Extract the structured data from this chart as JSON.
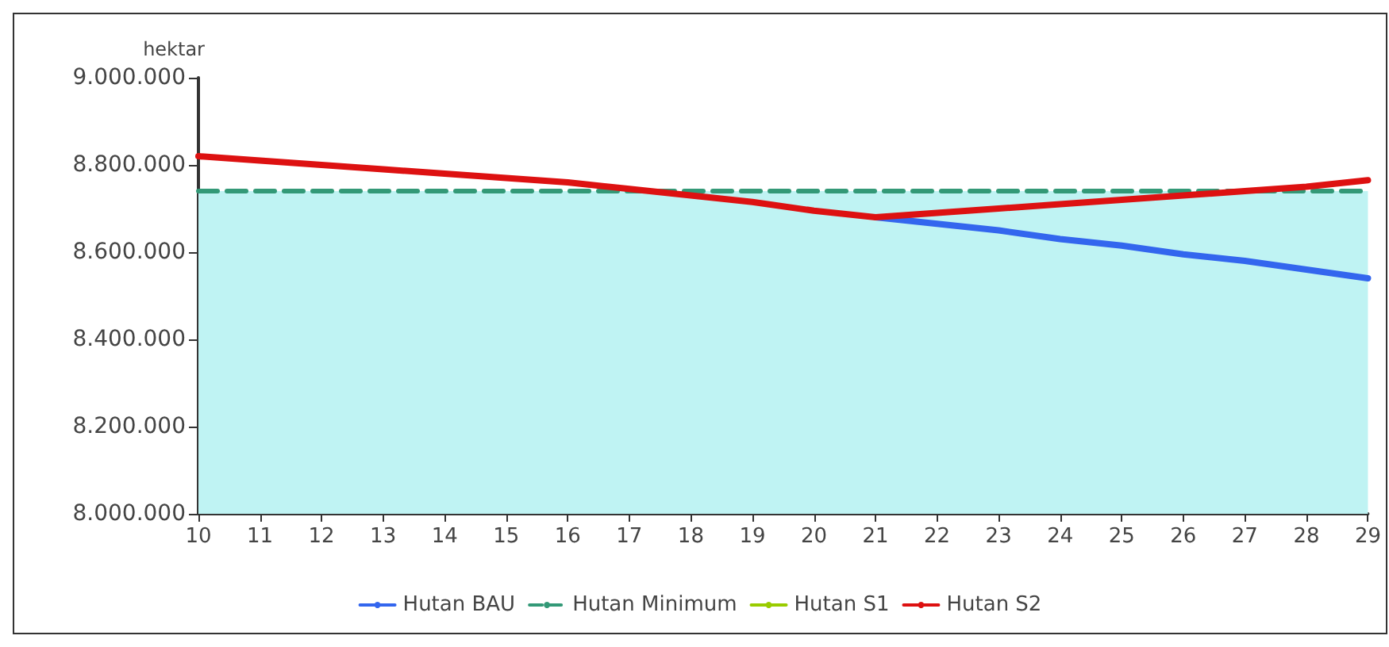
{
  "chart_data": {
    "type": "line",
    "ylabel": "hektar",
    "categories": [
      "10",
      "11",
      "12",
      "13",
      "14",
      "15",
      "16",
      "17",
      "18",
      "19",
      "20",
      "21",
      "22",
      "23",
      "24",
      "25",
      "26",
      "27",
      "28",
      "29"
    ],
    "series": [
      {
        "name": "Hutan BAU",
        "color": "#3366ee",
        "values": [
          null,
          null,
          null,
          null,
          null,
          null,
          null,
          null,
          null,
          null,
          null,
          8680000,
          8665000,
          8650000,
          8630000,
          8615000,
          8595000,
          8580000,
          8560000,
          8540000
        ]
      },
      {
        "name": "Hutan Minimum",
        "type": "area",
        "color": "#339977",
        "line_style": "dashed",
        "values": [
          8740000,
          8740000,
          8740000,
          8740000,
          8740000,
          8740000,
          8740000,
          8740000,
          8740000,
          8740000,
          8740000,
          8740000,
          8740000,
          8740000,
          8740000,
          8740000,
          8740000,
          8740000,
          8740000,
          8740000
        ]
      },
      {
        "name": "Hutan S1",
        "color": "#99cc00",
        "values": [
          null,
          null,
          null,
          null,
          null,
          null,
          null,
          null,
          null,
          null,
          null,
          null,
          null,
          null,
          null,
          null,
          null,
          null,
          null,
          null
        ]
      },
      {
        "name": "Hutan S2",
        "color": "#dd1111",
        "values": [
          8820000,
          8810000,
          8800000,
          8790000,
          8780000,
          8770000,
          8760000,
          8745000,
          8730000,
          8715000,
          8695000,
          8680000,
          8690000,
          8700000,
          8710000,
          8720000,
          8730000,
          8740000,
          8750000,
          8765000
        ]
      }
    ],
    "ylim": [
      8000000,
      9000000
    ],
    "yticks": [
      {
        "value": 8000000,
        "label": "8.000.000"
      },
      {
        "value": 8200000,
        "label": "8.200.000"
      },
      {
        "value": 8400000,
        "label": "8.400.000"
      },
      {
        "value": 8600000,
        "label": "8.600.000"
      },
      {
        "value": 8800000,
        "label": "8.800.000"
      },
      {
        "value": 9000000,
        "label": "9.000.000"
      }
    ],
    "grid": false,
    "legend": "bottom",
    "marker": "none",
    "line_style": "solid"
  }
}
